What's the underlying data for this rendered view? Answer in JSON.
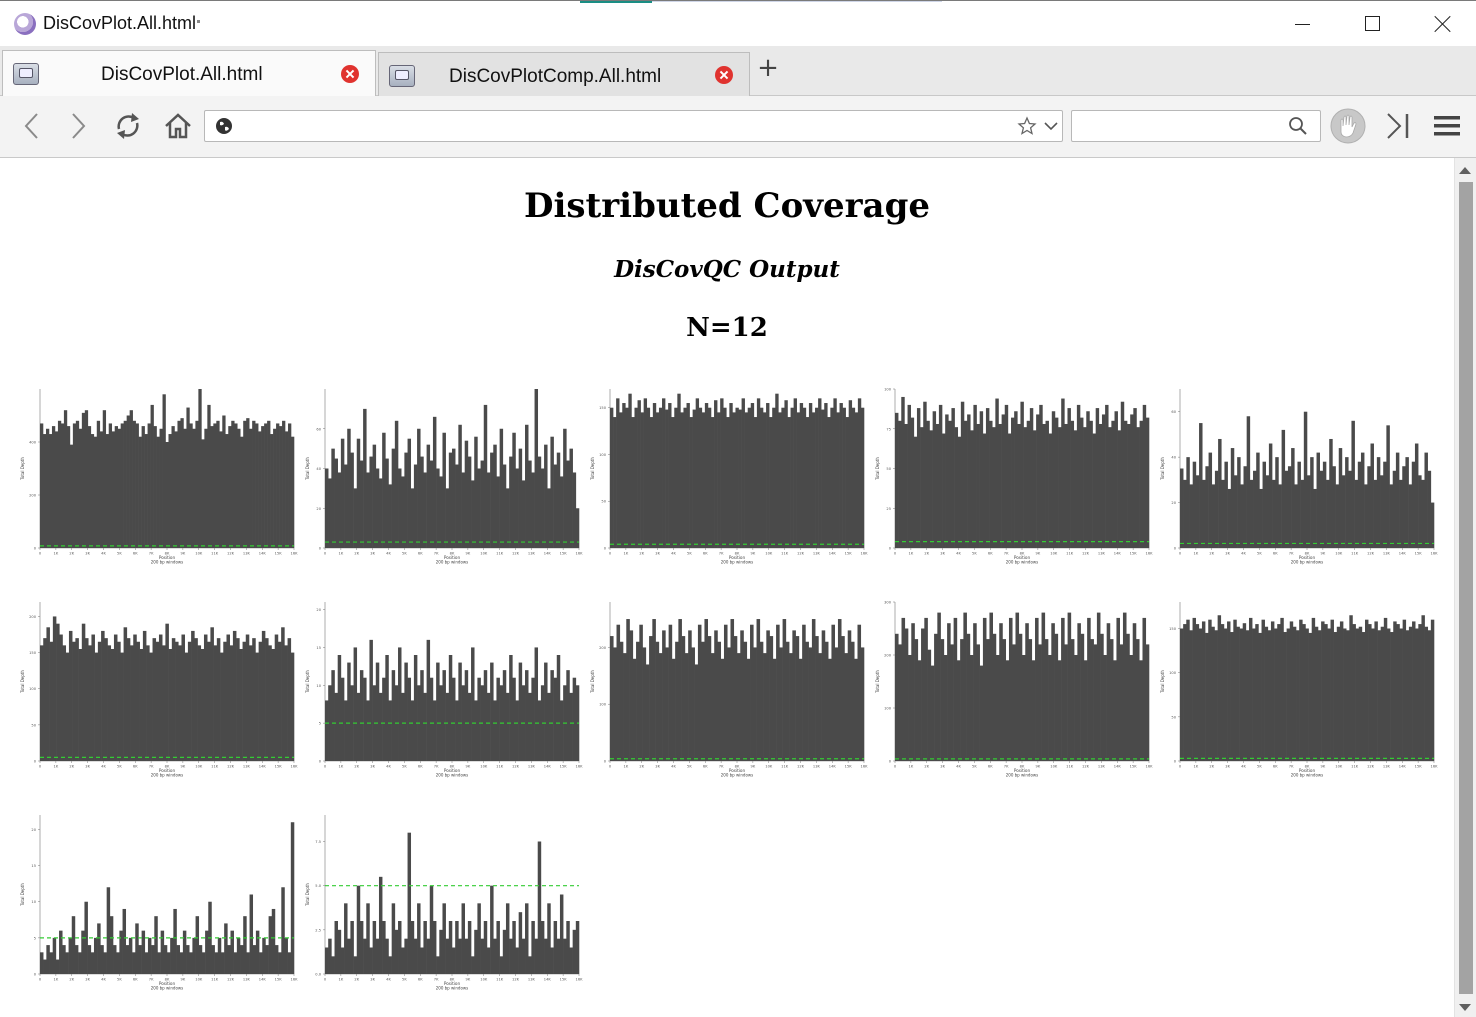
{
  "window": {
    "title": "DisCovPlot.All.html",
    "controls": [
      "minimize",
      "maximize",
      "close"
    ]
  },
  "tabs": [
    {
      "label": "DisCovPlot.All.html",
      "active": true,
      "icon": "page-icon"
    },
    {
      "label": "DisCovPlotComp.All.html",
      "active": false,
      "icon": "page-icon"
    }
  ],
  "toolbar": {
    "buttons": [
      "back-icon",
      "forward-icon",
      "reload-icon",
      "home-icon"
    ],
    "url": {
      "value": "",
      "placeholder": ""
    },
    "search": {
      "value": "",
      "placeholder": ""
    }
  },
  "page": {
    "title": "Distributed Coverage",
    "subtitle": "DisCovQC Output",
    "count_label": "N=12"
  },
  "colors": {
    "bar": "#4a4a4a",
    "mean_line": "#33cc33"
  },
  "chart_data": [
    {
      "type": "bar",
      "y_ticks": [
        "0",
        "200",
        "400"
      ],
      "ylim": [
        0,
        600
      ],
      "mean": 8,
      "x_ticks": [
        "0",
        "1K",
        "2K",
        "3K",
        "4K",
        "5K",
        "6K",
        "7K",
        "8K",
        "9K",
        "10K",
        "11K",
        "12K",
        "13K",
        "14K",
        "15K",
        "16K"
      ],
      "xlabel": "Position",
      "xlabel2": "200 bp windows",
      "ylabel": "Total Depth",
      "values": [
        470,
        430,
        450,
        430,
        460,
        440,
        480,
        470,
        520,
        460,
        390,
        470,
        480,
        450,
        510,
        520,
        460,
        430,
        420,
        480,
        440,
        520,
        430,
        470,
        440,
        460,
        450,
        470,
        480,
        500,
        520,
        480,
        470,
        420,
        460,
        430,
        470,
        540,
        460,
        420,
        450,
        580,
        400,
        430,
        460,
        440,
        480,
        490,
        450,
        530,
        470,
        450,
        480,
        600,
        410,
        450,
        540,
        460,
        470,
        480,
        440,
        500,
        430,
        460,
        480,
        470,
        450,
        420,
        480,
        490,
        450,
        480,
        470,
        440,
        460,
        470,
        480,
        430,
        450,
        470,
        460,
        480,
        440,
        470,
        420
      ]
    },
    {
      "type": "bar",
      "y_ticks": [
        "0",
        "20",
        "40",
        "60"
      ],
      "ylim": [
        0,
        80
      ],
      "mean": 3,
      "x_ticks": [
        "0",
        "1K",
        "2K",
        "3K",
        "4K",
        "5K",
        "6K",
        "7K",
        "8K",
        "9K",
        "10K",
        "11K",
        "12K",
        "13K",
        "14K",
        "15K",
        "16K"
      ],
      "xlabel": "Position",
      "xlabel2": "200 bp windows",
      "ylabel": "Total Depth",
      "values": [
        40,
        35,
        50,
        45,
        38,
        55,
        42,
        60,
        48,
        30,
        55,
        44,
        70,
        38,
        46,
        52,
        40,
        35,
        58,
        45,
        32,
        50,
        64,
        40,
        36,
        48,
        55,
        30,
        42,
        60,
        46,
        38,
        52,
        44,
        66,
        40,
        36,
        58,
        30,
        48,
        50,
        42,
        62,
        38,
        54,
        46,
        34,
        56,
        40,
        44,
        72,
        38,
        48,
        52,
        36,
        60,
        42,
        30,
        46,
        58,
        40,
        50,
        34,
        62,
        44,
        38,
        80,
        46,
        40,
        52,
        30,
        56,
        42,
        48,
        36,
        60,
        44,
        50,
        38,
        20
      ]
    },
    {
      "type": "bar",
      "y_ticks": [
        "0",
        "50",
        "100",
        "150"
      ],
      "ylim": [
        0,
        170
      ],
      "mean": 4,
      "x_ticks": [
        "0",
        "1K",
        "2K",
        "3K",
        "4K",
        "5K",
        "6K",
        "7K",
        "8K",
        "9K",
        "10K",
        "11K",
        "12K",
        "13K",
        "14K",
        "15K",
        "16K"
      ],
      "xlabel": "Position",
      "xlabel2": "200 bp windows",
      "ylabel": "Total Depth",
      "values": [
        150,
        140,
        160,
        145,
        155,
        150,
        165,
        140,
        150,
        158,
        145,
        160,
        150,
        140,
        155,
        145,
        150,
        160,
        148,
        155,
        140,
        150,
        165,
        145,
        150,
        155,
        140,
        148,
        160,
        150,
        145,
        155,
        150,
        140,
        158,
        145,
        160,
        150,
        140,
        155,
        145,
        150,
        148,
        160,
        145,
        150,
        155,
        140,
        160,
        150,
        145,
        155,
        140,
        150,
        165,
        145,
        150,
        158,
        140,
        150,
        160,
        145,
        155,
        150,
        140,
        155,
        145,
        150,
        160,
        148,
        155,
        140,
        150,
        160,
        145,
        155,
        150,
        140,
        158,
        150,
        145,
        160,
        150
      ]
    },
    {
      "type": "bar",
      "y_ticks": [
        "0",
        "25",
        "50",
        "75",
        "100"
      ],
      "ylim": [
        0,
        100
      ],
      "mean": 4,
      "x_ticks": [
        "0",
        "1K",
        "2K",
        "3K",
        "4K",
        "5K",
        "6K",
        "7K",
        "8K",
        "9K",
        "10K",
        "11K",
        "12K",
        "13K",
        "14K",
        "15K",
        "16K"
      ],
      "xlabel": "Position",
      "xlabel2": "200 bp windows",
      "ylabel": "Total Depth",
      "values": [
        85,
        80,
        95,
        78,
        90,
        82,
        70,
        88,
        76,
        92,
        80,
        74,
        86,
        78,
        90,
        72,
        84,
        80,
        88,
        76,
        70,
        92,
        80,
        84,
        74,
        90,
        78,
        86,
        72,
        88,
        80,
        76,
        94,
        78,
        84,
        90,
        72,
        82,
        86,
        78,
        92,
        76,
        80,
        88,
        74,
        84,
        90,
        78,
        80,
        72,
        86,
        82,
        76,
        94,
        78,
        88,
        80,
        74,
        90,
        82,
        76,
        86,
        80,
        72,
        88,
        78,
        84,
        90,
        76,
        80,
        86,
        74,
        92,
        80,
        78,
        84,
        88,
        76,
        80,
        90,
        82
      ]
    },
    {
      "type": "bar",
      "y_ticks": [
        "0",
        "20",
        "40",
        "60"
      ],
      "ylim": [
        0,
        70
      ],
      "mean": 2,
      "x_ticks": [
        "0",
        "1K",
        "2K",
        "3K",
        "4K",
        "5K",
        "6K",
        "7K",
        "8K",
        "9K",
        "10K",
        "11K",
        "12K",
        "13K",
        "14K",
        "15K",
        "16K"
      ],
      "xlabel": "Position",
      "xlabel2": "200 bp windows",
      "ylabel": "Total Depth",
      "values": [
        35,
        30,
        40,
        28,
        38,
        32,
        55,
        30,
        36,
        42,
        28,
        34,
        48,
        30,
        38,
        26,
        44,
        32,
        40,
        28,
        36,
        58,
        30,
        34,
        42,
        26,
        38,
        32,
        46,
        30,
        40,
        28,
        52,
        34,
        36,
        44,
        28,
        38,
        30,
        60,
        32,
        40,
        26,
        42,
        34,
        38,
        30,
        48,
        36,
        28,
        44,
        32,
        40,
        34,
        56,
        30,
        38,
        42,
        28,
        36,
        46,
        30,
        40,
        32,
        38,
        54,
        28,
        34,
        42,
        30,
        36,
        40,
        28,
        38,
        46,
        32,
        30,
        42,
        34,
        20
      ]
    },
    {
      "type": "bar",
      "y_ticks": [
        "0",
        "50",
        "100",
        "150",
        "200"
      ],
      "ylim": [
        0,
        220
      ],
      "mean": 5,
      "x_ticks": [
        "0",
        "1K",
        "2K",
        "3K",
        "4K",
        "5K",
        "6K",
        "7K",
        "8K",
        "9K",
        "10K",
        "11K",
        "12K",
        "13K",
        "14K",
        "15K",
        "16K"
      ],
      "xlabel": "Position",
      "xlabel2": "200 bp windows",
      "ylabel": "Total Depth",
      "values": [
        160,
        170,
        185,
        165,
        200,
        190,
        175,
        160,
        150,
        180,
        165,
        170,
        155,
        190,
        170,
        160,
        175,
        150,
        165,
        180,
        170,
        160,
        155,
        175,
        165,
        150,
        185,
        170,
        160,
        175,
        165,
        155,
        180,
        160,
        150,
        170,
        165,
        175,
        160,
        190,
        155,
        170,
        165,
        160,
        175,
        150,
        165,
        180,
        170,
        160,
        155,
        175,
        165,
        185,
        160,
        170,
        150,
        165,
        175,
        160,
        180,
        170,
        155,
        165,
        175,
        160,
        170,
        150,
        165,
        180,
        170,
        160,
        155,
        175,
        165,
        185,
        160,
        170,
        150
      ]
    },
    {
      "type": "bar",
      "y_ticks": [
        "0",
        "5",
        "10",
        "15",
        "20"
      ],
      "ylim": [
        0,
        21
      ],
      "mean": 5,
      "x_ticks": [
        "0",
        "1K",
        "2K",
        "3K",
        "4K",
        "5K",
        "6K",
        "7K",
        "8K",
        "9K",
        "10K",
        "11K",
        "12K",
        "13K",
        "14K",
        "15K",
        "16K"
      ],
      "xlabel": "Position",
      "xlabel2": "200 bp windows",
      "ylabel": "Total Depth",
      "values": [
        8,
        10,
        12,
        9,
        14,
        11,
        8,
        13,
        10,
        15,
        9,
        12,
        11,
        8,
        16,
        10,
        13,
        9,
        11,
        14,
        8,
        12,
        10,
        15,
        9,
        13,
        11,
        8,
        14,
        10,
        12,
        9,
        16,
        11,
        8,
        13,
        10,
        12,
        9,
        14,
        11,
        8,
        13,
        10,
        12,
        9,
        15,
        8,
        11,
        10,
        12,
        9,
        13,
        8,
        11,
        10,
        12,
        9,
        14,
        11,
        8,
        13,
        10,
        12,
        9,
        11,
        15,
        8,
        10,
        13,
        9,
        12,
        11,
        14,
        8,
        10,
        12,
        9,
        11,
        10
      ]
    },
    {
      "type": "bar",
      "y_ticks": [
        "0",
        "100",
        "200"
      ],
      "ylim": [
        0,
        280
      ],
      "mean": 4,
      "x_ticks": [
        "0",
        "1K",
        "2K",
        "3K",
        "4K",
        "5K",
        "6K",
        "7K",
        "8K",
        "9K",
        "10K",
        "11K",
        "12K",
        "13K",
        "14K",
        "15K",
        "16K"
      ],
      "xlabel": "Position",
      "xlabel2": "200 bp windows",
      "ylabel": "Total Depth",
      "values": [
        220,
        200,
        240,
        210,
        190,
        250,
        230,
        180,
        210,
        240,
        200,
        170,
        220,
        250,
        210,
        190,
        230,
        200,
        240,
        180,
        210,
        250,
        220,
        190,
        230,
        200,
        170,
        240,
        210,
        250,
        220,
        190,
        230,
        210,
        180,
        240,
        200,
        250,
        220,
        190,
        230,
        210,
        180,
        240,
        200,
        250,
        210,
        190,
        230,
        220,
        180,
        240,
        200,
        250,
        210,
        190,
        230,
        220,
        180,
        240,
        210,
        200,
        250,
        220,
        190,
        230,
        210,
        180,
        240,
        200,
        250,
        220,
        190,
        230,
        210,
        180,
        240,
        200
      ]
    },
    {
      "type": "bar",
      "y_ticks": [
        "0",
        "100",
        "200",
        "300"
      ],
      "ylim": [
        0,
        300
      ],
      "mean": 4,
      "x_ticks": [
        "0",
        "1K",
        "2K",
        "3K",
        "4K",
        "5K",
        "6K",
        "7K",
        "8K",
        "9K",
        "10K",
        "11K",
        "12K",
        "13K",
        "14K",
        "15K",
        "16K"
      ],
      "xlabel": "Position",
      "xlabel2": "200 bp windows",
      "ylabel": "Total Depth",
      "values": [
        240,
        220,
        270,
        250,
        200,
        260,
        230,
        190,
        250,
        270,
        210,
        180,
        240,
        280,
        230,
        200,
        260,
        220,
        270,
        190,
        230,
        280,
        240,
        200,
        260,
        220,
        180,
        270,
        230,
        280,
        240,
        200,
        260,
        230,
        190,
        270,
        220,
        280,
        240,
        200,
        260,
        230,
        190,
        270,
        220,
        280,
        230,
        200,
        260,
        240,
        190,
        270,
        220,
        280,
        230,
        200,
        260,
        240,
        190,
        270,
        230,
        220,
        280,
        240,
        200,
        260,
        230,
        190,
        270,
        220,
        280,
        240,
        200,
        260,
        230,
        190,
        270,
        220
      ]
    },
    {
      "type": "bar",
      "y_ticks": [
        "0",
        "50",
        "100",
        "150"
      ],
      "ylim": [
        0,
        180
      ],
      "mean": 3,
      "x_ticks": [
        "0",
        "1K",
        "2K",
        "3K",
        "4K",
        "5K",
        "6K",
        "7K",
        "8K",
        "9K",
        "10K",
        "11K",
        "12K",
        "13K",
        "14K",
        "15K",
        "16K"
      ],
      "xlabel": "Position",
      "xlabel2": "200 bp windows",
      "ylabel": "Total Depth",
      "values": [
        150,
        155,
        160,
        148,
        162,
        155,
        150,
        158,
        145,
        160,
        152,
        148,
        165,
        155,
        150,
        158,
        146,
        160,
        152,
        150,
        156,
        148,
        162,
        150,
        155,
        145,
        160,
        152,
        148,
        158,
        150,
        155,
        162,
        146,
        150,
        158,
        152,
        148,
        160,
        155,
        150,
        145,
        162,
        152,
        148,
        158,
        155,
        150,
        160,
        146,
        152,
        158,
        150,
        148,
        165,
        155,
        150,
        152,
        146,
        160,
        155,
        150,
        158,
        148,
        152,
        162,
        150,
        146,
        158,
        155,
        150,
        160,
        148,
        152,
        158,
        150,
        155,
        165,
        152,
        148,
        160
      ]
    },
    {
      "type": "bar",
      "y_ticks": [
        "0",
        "5",
        "10",
        "15",
        "20"
      ],
      "ylim": [
        0,
        22
      ],
      "mean": 5,
      "x_ticks": [
        "0",
        "1K",
        "2K",
        "3K",
        "4K",
        "5K",
        "6K",
        "7K",
        "8K",
        "9K",
        "10K",
        "11K",
        "12K",
        "13K",
        "14K",
        "15K",
        "16K"
      ],
      "xlabel": "Position",
      "xlabel2": "200 bp windows",
      "ylabel": "Total Depth",
      "values": [
        3,
        2,
        4,
        3,
        5,
        2,
        6,
        4,
        3,
        5,
        8,
        4,
        3,
        6,
        10,
        4,
        3,
        5,
        7,
        4,
        3,
        12,
        8,
        4,
        3,
        6,
        9,
        4,
        5,
        3,
        7,
        4,
        6,
        3,
        5,
        4,
        8,
        3,
        6,
        4,
        3,
        5,
        9,
        4,
        3,
        6,
        4,
        3,
        5,
        8,
        4,
        3,
        6,
        10,
        4,
        3,
        5,
        3,
        7,
        4,
        6,
        3,
        5,
        4,
        8,
        3,
        11,
        4,
        6,
        3,
        5,
        4,
        8,
        9,
        4,
        3,
        12,
        5,
        3,
        21
      ]
    },
    {
      "type": "bar",
      "y_ticks": [
        "0.0",
        "2.5",
        "5.0",
        "7.5"
      ],
      "ylim": [
        0,
        9
      ],
      "mean": 5,
      "x_ticks": [
        "0",
        "1K",
        "2K",
        "3K",
        "4K",
        "5K",
        "6K",
        "7K",
        "8K",
        "9K",
        "10K",
        "11K",
        "12K",
        "13K",
        "14K",
        "15K",
        "16K"
      ],
      "xlabel": "Position",
      "xlabel2": "200 bp windows",
      "ylabel": "Total Depth",
      "values": [
        1.5,
        2,
        1,
        3,
        2.5,
        1.5,
        4,
        2,
        3,
        1,
        5,
        3,
        2,
        4,
        1.5,
        3,
        2,
        5.5,
        3,
        2,
        1,
        4,
        2.5,
        3,
        1.5,
        2,
        8,
        3,
        2,
        4,
        1.5,
        3,
        2,
        5,
        3,
        1,
        2.5,
        4,
        2,
        3,
        1.5,
        3,
        2,
        4,
        2,
        3,
        1,
        2.5,
        4,
        2,
        3,
        1.5,
        5,
        2,
        3,
        1,
        2.5,
        4,
        2,
        3,
        1.5,
        3.5,
        2,
        4,
        1,
        3,
        2,
        7.5,
        3,
        2,
        4,
        1.5,
        3,
        2,
        4.5,
        2,
        3,
        1.5,
        2.5,
        3
      ]
    }
  ]
}
